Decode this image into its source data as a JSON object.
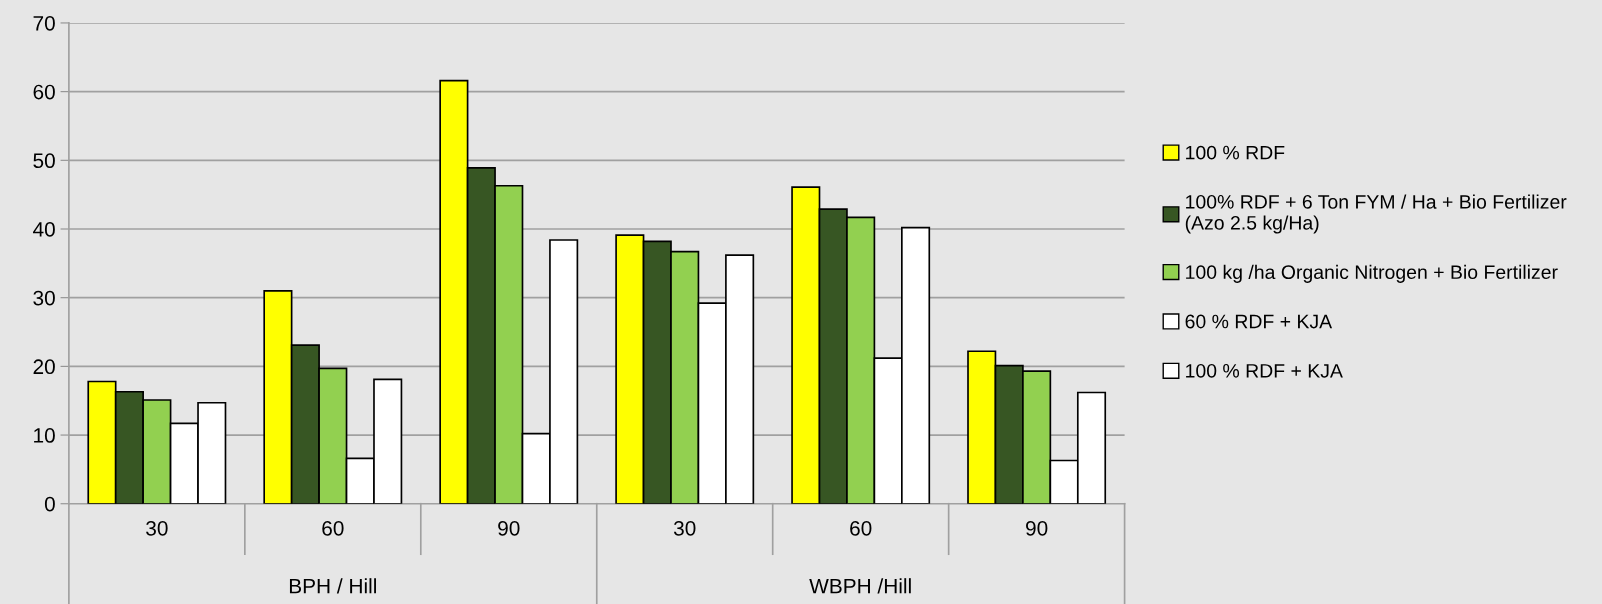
{
  "chart_data": {
    "type": "bar",
    "categories": [
      "30",
      "60",
      "90",
      "30",
      "60",
      "90"
    ],
    "annotations": [
      {
        "text": "BPH / Hill"
      },
      {
        "text": "WBPH /Hill"
      }
    ],
    "series": [
      {
        "name": "100 % RDF",
        "color": "#ffff00",
        "values": [
          17.8,
          31.0,
          61.6,
          39.1,
          46.1,
          22.2
        ]
      },
      {
        "name": "100% RDF + 6 Ton FYM / Ha + Bio Fertilizer\n(Azo 2.5 kg/Ha)",
        "color": "#375623",
        "values": [
          16.3,
          23.1,
          48.9,
          38.2,
          42.9,
          20.1
        ]
      },
      {
        "name": "100 kg /ha Organic Nitrogen + Bio Fertilizer",
        "color": "#92d050",
        "values": [
          15.1,
          19.7,
          46.3,
          36.7,
          41.7,
          19.3
        ]
      },
      {
        "name": "60 % RDF + KJA",
        "color": "#ffffff",
        "values": [
          11.7,
          6.6,
          10.2,
          29.2,
          21.2,
          6.3
        ]
      },
      {
        "name": "100 % RDF + KJA",
        "color": "#ffffff",
        "values": [
          14.7,
          18.1,
          38.4,
          36.2,
          40.2,
          16.2
        ]
      }
    ],
    "ylim": [
      0,
      70
    ],
    "yticks": [
      0,
      10,
      20,
      30,
      40,
      50,
      60,
      70
    ],
    "grid": "y",
    "legend": "right"
  }
}
